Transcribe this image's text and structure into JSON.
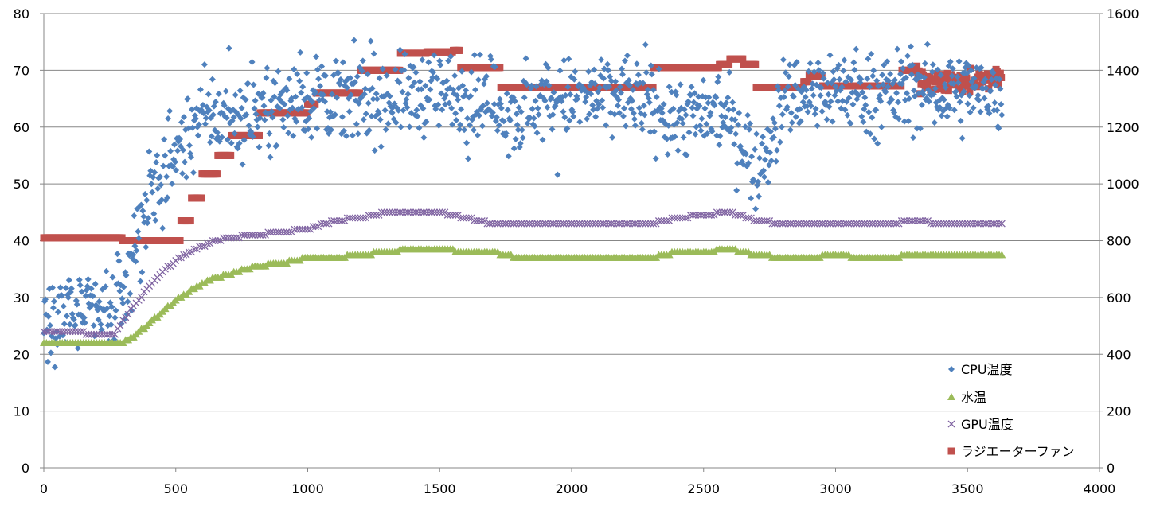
{
  "chart_data": {
    "type": "scatter",
    "title": "",
    "xlabel": "",
    "ylabel": "",
    "y2label": "",
    "xlim": [
      0,
      4000
    ],
    "ylim": [
      0,
      80
    ],
    "y2lim": [
      0,
      1600
    ],
    "x_ticks": [
      0,
      500,
      1000,
      1500,
      2000,
      2500,
      3000,
      3500,
      4000
    ],
    "y_ticks": [
      0,
      10,
      20,
      30,
      40,
      50,
      60,
      70,
      80
    ],
    "y2_ticks": [
      0,
      200,
      400,
      600,
      800,
      1000,
      1200,
      1400,
      1600
    ],
    "grid": "horizontal",
    "legend_position": "bottom-right",
    "series": [
      {
        "name": "CPU温度",
        "axis": "left",
        "marker": "diamond",
        "color": "#4F81BD",
        "anchors_x": [
          0,
          100,
          200,
          250,
          300,
          350,
          400,
          450,
          500,
          550,
          600,
          650,
          700,
          750,
          800,
          900,
          1000,
          1100,
          1200,
          1300,
          1400,
          1500,
          1600,
          1700,
          1800,
          1900,
          2000,
          2100,
          2200,
          2300,
          2400,
          2500,
          2600,
          2650,
          2700,
          2750,
          2800,
          2900,
          3000,
          3100,
          3200,
          3300,
          3400,
          3500,
          3630
        ],
        "anchors_y": [
          28,
          28,
          27,
          27,
          30,
          40,
          47,
          52,
          55,
          59,
          62,
          62,
          62,
          62,
          63,
          64,
          65,
          65,
          65,
          65,
          66,
          66,
          66,
          65,
          62,
          65,
          65,
          65,
          66,
          64,
          62,
          62,
          62,
          58,
          52,
          58,
          65,
          66,
          67,
          66,
          66,
          67,
          66,
          66,
          66
        ],
        "spread": 3.5
      },
      {
        "name": "水温",
        "axis": "left",
        "marker": "triangle",
        "color": "#9BBB59",
        "anchors_x": [
          0,
          100,
          200,
          300,
          350,
          400,
          450,
          500,
          550,
          600,
          650,
          700,
          800,
          900,
          1000,
          1100,
          1200,
          1300,
          1400,
          1500,
          1600,
          1700,
          1800,
          1900,
          2000,
          2100,
          2200,
          2300,
          2400,
          2500,
          2600,
          2700,
          2800,
          2900,
          3000,
          3100,
          3200,
          3300,
          3400,
          3500,
          3630
        ],
        "anchors_y": [
          22,
          22,
          22,
          22,
          23.5,
          25.5,
          27.5,
          29.5,
          31,
          32.5,
          33.5,
          34,
          35.5,
          36,
          37,
          37,
          37.5,
          38,
          38.5,
          38.5,
          38,
          38,
          37,
          37,
          37,
          37,
          37,
          37,
          38,
          38,
          38.5,
          37.5,
          37,
          37,
          37.5,
          37,
          37,
          37.5,
          37.5,
          37.5,
          37.5
        ]
      },
      {
        "name": "GPU温度",
        "axis": "left",
        "marker": "cross",
        "color": "#8064A2",
        "anchors_x": [
          0,
          100,
          200,
          270,
          300,
          350,
          400,
          450,
          500,
          550,
          600,
          650,
          700,
          800,
          900,
          1000,
          1100,
          1200,
          1300,
          1400,
          1500,
          1600,
          1700,
          1800,
          1900,
          2000,
          2100,
          2200,
          2300,
          2400,
          2500,
          2600,
          2700,
          2800,
          2900,
          3000,
          3100,
          3200,
          3300,
          3400,
          3500,
          3630
        ],
        "anchors_y": [
          24,
          24,
          23.5,
          23.5,
          26,
          29,
          32,
          34.5,
          36.5,
          38,
          39,
          40,
          40.5,
          41,
          41.5,
          42,
          43.5,
          44,
          45,
          45,
          45,
          44,
          43,
          43,
          43,
          43,
          43,
          43,
          43,
          44,
          44.5,
          45,
          43.5,
          43,
          43,
          43,
          43,
          43,
          43.5,
          43,
          43,
          43
        ]
      },
      {
        "name": "ラジエーターファン",
        "axis": "right",
        "marker": "square",
        "color": "#C0504D",
        "steps": [
          [
            0,
            810
          ],
          [
            300,
            800
          ],
          [
            520,
            870
          ],
          [
            560,
            950
          ],
          [
            600,
            1035
          ],
          [
            660,
            1100
          ],
          [
            710,
            1170
          ],
          [
            820,
            1250
          ],
          [
            1000,
            1280
          ],
          [
            1030,
            1320
          ],
          [
            1200,
            1400
          ],
          [
            1350,
            1460
          ],
          [
            1450,
            1465
          ],
          [
            1550,
            1470
          ],
          [
            1580,
            1410
          ],
          [
            1730,
            1340
          ],
          [
            2310,
            1410
          ],
          [
            2560,
            1420
          ],
          [
            2600,
            1440
          ],
          [
            2650,
            1420
          ],
          [
            2700,
            1340
          ],
          [
            2880,
            1360
          ],
          [
            2900,
            1380
          ],
          [
            2950,
            1345
          ],
          [
            3250,
            1400
          ],
          [
            3320,
            1355
          ],
          [
            3500,
            1370
          ],
          [
            3600,
            1380
          ],
          [
            3630,
            1350
          ]
        ],
        "end_x": 3630
      }
    ]
  }
}
